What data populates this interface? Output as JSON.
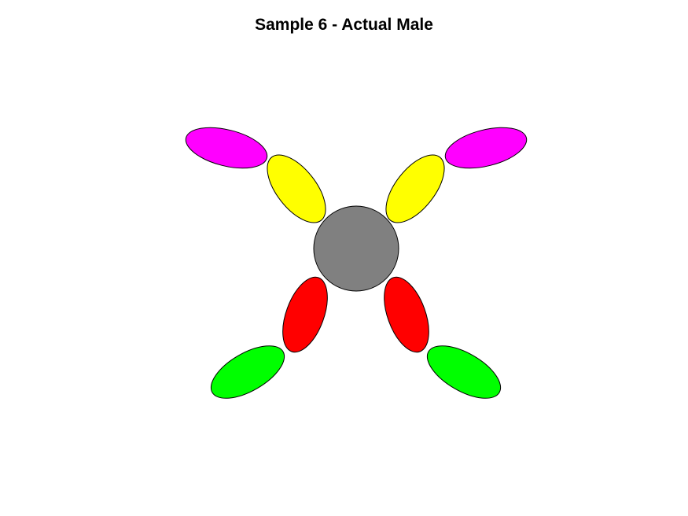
{
  "title": "Sample 6 - Actual Male",
  "figure": {
    "background": "#ffffff",
    "outline_color": "#000000",
    "body": {
      "name": "body",
      "color": "#808080"
    },
    "limbs": [
      {
        "name": "upper-left-inner-segment",
        "color": "#ffff00"
      },
      {
        "name": "upper-left-outer-segment",
        "color": "#ff00ff"
      },
      {
        "name": "upper-right-inner-segment",
        "color": "#ffff00"
      },
      {
        "name": "upper-right-outer-segment",
        "color": "#ff00ff"
      },
      {
        "name": "lower-left-inner-segment",
        "color": "#ff0000"
      },
      {
        "name": "lower-left-outer-segment",
        "color": "#00ff00"
      },
      {
        "name": "lower-right-inner-segment",
        "color": "#ff0000"
      },
      {
        "name": "lower-right-outer-segment",
        "color": "#00ff00"
      }
    ]
  }
}
